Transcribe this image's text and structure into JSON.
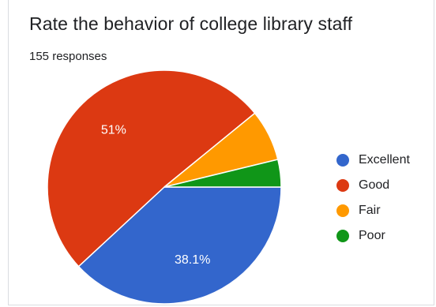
{
  "title": "Rate the behavior of college library staff",
  "subtitle": "155 responses",
  "chart_data": {
    "type": "pie",
    "title": "Rate the behavior of college library staff",
    "subtitle": "155 responses",
    "legend_position": "right",
    "slices": [
      {
        "label": "Excellent",
        "value": 38.1,
        "color": "#3366cc",
        "data_label": "38.1%"
      },
      {
        "label": "Good",
        "value": 51.0,
        "color": "#dc3912",
        "data_label": "51%"
      },
      {
        "label": "Fair",
        "value": 7.1,
        "color": "#ff9900",
        "data_label": ""
      },
      {
        "label": "Poor",
        "value": 3.8,
        "color": "#109618",
        "data_label": ""
      }
    ]
  }
}
